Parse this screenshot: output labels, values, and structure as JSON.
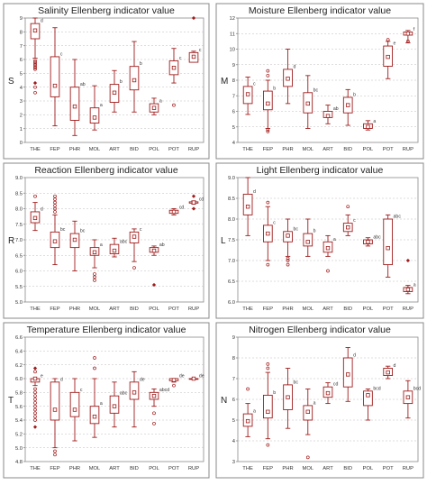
{
  "style": {
    "box_color": "#a01c1c",
    "point_color": "#a01c1c",
    "frame_color": "#8a8a8a",
    "grid_color": "#bdbdbd",
    "axis_text_color": "#333333"
  },
  "chart_data": [
    {
      "type": "box",
      "title": "Salinity Ellenberg indicator value",
      "ylabel": "S",
      "ylim": [
        0,
        9
      ],
      "yticks": [
        "0",
        "1",
        "2",
        "3",
        "4",
        "5",
        "6",
        "7",
        "8",
        "9"
      ],
      "grid": true,
      "categories": [
        "THE",
        "FEP",
        "PHR",
        "MOL",
        "ART",
        "BID",
        "POL",
        "POT",
        "RUP"
      ],
      "series": [
        {
          "values": [
            {
              "min": 6.1,
              "q1": 7.5,
              "median": 8.1,
              "q3": 8.6,
              "max": 9.0,
              "letter": "d",
              "outliers": [
                4.0,
                3.6,
                5.3,
                5.4,
                5.5,
                5.6,
                5.7,
                5.8,
                5.9
              ],
              "extremes": [
                4.3
              ]
            },
            {
              "min": 1.2,
              "q1": 3.3,
              "median": 4.1,
              "q3": 6.2,
              "max": 8.3,
              "letter": "c",
              "outliers": [],
              "extremes": []
            },
            {
              "min": 0.5,
              "q1": 1.6,
              "median": 2.6,
              "q3": 4.0,
              "max": 6.0,
              "letter": "ab",
              "outliers": [],
              "extremes": []
            },
            {
              "min": 0.9,
              "q1": 1.4,
              "median": 1.8,
              "q3": 2.5,
              "max": 4.1,
              "letter": "a",
              "outliers": [],
              "extremes": []
            },
            {
              "min": 2.2,
              "q1": 2.9,
              "median": 3.6,
              "q3": 4.2,
              "max": 5.2,
              "letter": "b",
              "outliers": [],
              "extremes": []
            },
            {
              "min": 2.2,
              "q1": 3.8,
              "median": 4.5,
              "q3": 5.5,
              "max": 7.3,
              "letter": "b",
              "outliers": [],
              "extremes": []
            },
            {
              "min": 2.0,
              "q1": 2.2,
              "median": 2.5,
              "q3": 2.8,
              "max": 3.2,
              "letter": "a",
              "outliers": [],
              "extremes": []
            },
            {
              "min": 4.3,
              "q1": 4.9,
              "median": 5.4,
              "q3": 5.9,
              "max": 6.8,
              "letter": "c",
              "outliers": [
                2.7
              ],
              "extremes": []
            },
            {
              "min": 5.8,
              "q1": 5.8,
              "median": 6.2,
              "q3": 6.5,
              "max": 6.6,
              "letter": "c",
              "outliers": [],
              "extremes": [
                9.0
              ]
            }
          ]
        }
      ]
    },
    {
      "type": "box",
      "title": "Moisture Ellenberg indicator value",
      "ylabel": "M",
      "ylim": [
        4,
        12
      ],
      "yticks": [
        "4",
        "5",
        "6",
        "7",
        "8",
        "9",
        "10",
        "11",
        "12"
      ],
      "grid": true,
      "categories": [
        "THE",
        "FEP",
        "PHR",
        "MOL",
        "ART",
        "BID",
        "POL",
        "POT",
        "RUP"
      ],
      "series": [
        {
          "values": [
            {
              "min": 5.8,
              "q1": 6.5,
              "median": 7.1,
              "q3": 7.6,
              "max": 8.2,
              "letter": "c",
              "outliers": [],
              "extremes": []
            },
            {
              "min": 4.9,
              "q1": 6.1,
              "median": 6.5,
              "q3": 7.3,
              "max": 8.0,
              "letter": "b",
              "outliers": [
                8.3,
                8.6,
                4.7,
                4.8
              ],
              "extremes": []
            },
            {
              "min": 6.5,
              "q1": 7.6,
              "median": 8.1,
              "q3": 8.7,
              "max": 10.0,
              "letter": "d",
              "outliers": [],
              "extremes": []
            },
            {
              "min": 4.9,
              "q1": 5.9,
              "median": 6.5,
              "q3": 7.2,
              "max": 8.3,
              "letter": "bc",
              "outliers": [],
              "extremes": []
            },
            {
              "min": 5.2,
              "q1": 5.6,
              "median": 5.7,
              "q3": 6.0,
              "max": 6.4,
              "letter": "ab",
              "outliers": [],
              "extremes": []
            },
            {
              "min": 5.1,
              "q1": 5.9,
              "median": 6.4,
              "q3": 6.9,
              "max": 7.4,
              "letter": "b",
              "outliers": [],
              "extremes": []
            },
            {
              "min": 4.8,
              "q1": 4.9,
              "median": 5.0,
              "q3": 5.2,
              "max": 5.4,
              "letter": "a",
              "outliers": [],
              "extremes": []
            },
            {
              "min": 8.1,
              "q1": 8.9,
              "median": 9.5,
              "q3": 10.2,
              "max": 10.5,
              "letter": "e",
              "outliers": [
                10.6
              ],
              "extremes": []
            },
            {
              "min": 10.4,
              "q1": 10.9,
              "median": 11.0,
              "q3": 11.1,
              "max": 11.2,
              "letter": "f",
              "outliers": [
                10.5
              ],
              "extremes": []
            }
          ]
        }
      ]
    },
    {
      "type": "box",
      "title": "Reaction Ellenberg indicator value",
      "ylabel": "R",
      "ylim": [
        5,
        9
      ],
      "yticks": [
        "5.0",
        "5.5",
        "6.0",
        "6.5",
        "7.0",
        "7.5",
        "8.0",
        "8.5",
        "9.0"
      ],
      "grid": true,
      "categories": [
        "THE",
        "FEP",
        "PHR",
        "MOL",
        "ART",
        "BID",
        "POL",
        "POT",
        "RUP"
      ],
      "series": [
        {
          "values": [
            {
              "min": 7.3,
              "q1": 7.55,
              "median": 7.7,
              "q3": 7.9,
              "max": 8.2,
              "letter": "d",
              "outliers": [
                8.4
              ],
              "extremes": []
            },
            {
              "min": 6.2,
              "q1": 6.75,
              "median": 6.95,
              "q3": 7.25,
              "max": 7.8,
              "letter": "bc",
              "outliers": [
                7.9,
                8.0,
                8.1,
                8.2,
                8.3,
                8.4
              ],
              "extremes": []
            },
            {
              "min": 6.0,
              "q1": 6.75,
              "median": 7.0,
              "q3": 7.2,
              "max": 7.6,
              "letter": "bc",
              "outliers": [],
              "extremes": []
            },
            {
              "min": 6.1,
              "q1": 6.5,
              "median": 6.6,
              "q3": 6.75,
              "max": 7.0,
              "letter": "a",
              "outliers": [
                5.7,
                5.8,
                5.9
              ],
              "extremes": []
            },
            {
              "min": 6.45,
              "q1": 6.55,
              "median": 6.65,
              "q3": 6.85,
              "max": 7.05,
              "letter": "abc",
              "outliers": [],
              "extremes": []
            },
            {
              "min": 6.3,
              "q1": 6.9,
              "median": 7.1,
              "q3": 7.25,
              "max": 7.35,
              "letter": "c",
              "outliers": [
                6.1
              ],
              "extremes": []
            },
            {
              "min": 6.5,
              "q1": 6.6,
              "median": 6.65,
              "q3": 6.75,
              "max": 6.8,
              "letter": "ab",
              "outliers": [],
              "extremes": [
                5.55
              ]
            },
            {
              "min": 7.8,
              "q1": 7.85,
              "median": 7.9,
              "q3": 7.95,
              "max": 8.0,
              "letter": "cd",
              "outliers": [],
              "extremes": []
            },
            {
              "min": 8.15,
              "q1": 8.18,
              "median": 8.2,
              "q3": 8.22,
              "max": 8.25,
              "letter": "cd",
              "outliers": [],
              "extremes": [
                8.4,
                8.0
              ]
            }
          ]
        }
      ]
    },
    {
      "type": "box",
      "title": "Light Ellenberg indicator value",
      "ylabel": "L",
      "ylim": [
        6,
        9
      ],
      "yticks": [
        "6.0",
        "6.5",
        "7.0",
        "7.5",
        "8.0",
        "8.5",
        "9.0"
      ],
      "grid": true,
      "categories": [
        "THE",
        "FEP",
        "PHR",
        "MOL",
        "ART",
        "BID",
        "POL",
        "POT",
        "RUP"
      ],
      "series": [
        {
          "values": [
            {
              "min": 7.6,
              "q1": 8.1,
              "median": 8.3,
              "q3": 8.6,
              "max": 9.0,
              "letter": "d",
              "outliers": [],
              "extremes": []
            },
            {
              "min": 7.0,
              "q1": 7.45,
              "median": 7.65,
              "q3": 7.85,
              "max": 8.3,
              "letter": "c",
              "outliers": [
                6.9,
                8.4
              ],
              "extremes": []
            },
            {
              "min": 7.1,
              "q1": 7.45,
              "median": 7.6,
              "q3": 7.7,
              "max": 8.0,
              "letter": "bc",
              "outliers": [
                6.9,
                7.0,
                7.05
              ],
              "extremes": []
            },
            {
              "min": 7.1,
              "q1": 7.35,
              "median": 7.45,
              "q3": 7.65,
              "max": 8.0,
              "letter": "b",
              "outliers": [],
              "extremes": []
            },
            {
              "min": 7.1,
              "q1": 7.2,
              "median": 7.3,
              "q3": 7.45,
              "max": 7.6,
              "letter": "a",
              "outliers": [
                6.75
              ],
              "extremes": []
            },
            {
              "min": 7.6,
              "q1": 7.7,
              "median": 7.8,
              "q3": 7.9,
              "max": 8.1,
              "letter": "c",
              "outliers": [
                8.3
              ],
              "extremes": []
            },
            {
              "min": 7.35,
              "q1": 7.4,
              "median": 7.45,
              "q3": 7.5,
              "max": 7.55,
              "letter": "abc",
              "outliers": [],
              "extremes": []
            },
            {
              "min": 6.6,
              "q1": 6.9,
              "median": 7.3,
              "q3": 8.0,
              "max": 8.1,
              "letter": "abc",
              "outliers": [],
              "extremes": []
            },
            {
              "min": 6.2,
              "q1": 6.25,
              "median": 6.3,
              "q3": 6.35,
              "max": 6.4,
              "letter": "a",
              "outliers": [],
              "extremes": [
                7.0
              ]
            }
          ]
        }
      ]
    },
    {
      "type": "box",
      "title": "Temperature  Ellenberg indicator value",
      "ylabel": "T",
      "ylim": [
        4.8,
        6.6
      ],
      "yticks": [
        "4.8",
        "5.0",
        "5.2",
        "5.4",
        "5.6",
        "5.8",
        "6.0",
        "6.2",
        "6.4",
        "6.6"
      ],
      "grid": true,
      "categories": [
        "THE",
        "FEP",
        "PHR",
        "MOL",
        "ART",
        "BID",
        "POL",
        "POT",
        "RUP"
      ],
      "series": [
        {
          "values": [
            {
              "min": 5.9,
              "q1": 5.95,
              "median": 6.0,
              "q3": 6.0,
              "max": 6.0,
              "letter": "e",
              "outliers": [
                5.4,
                5.45,
                5.5,
                5.55,
                5.6,
                5.65,
                5.7,
                5.75,
                5.8,
                5.85,
                6.1
              ],
              "extremes": [
                6.15,
                5.3
              ]
            },
            {
              "min": 5.0,
              "q1": 5.4,
              "median": 5.55,
              "q3": 5.95,
              "max": 6.0,
              "letter": "d",
              "outliers": [
                4.95,
                4.9
              ],
              "extremes": []
            },
            {
              "min": 5.1,
              "q1": 5.45,
              "median": 5.55,
              "q3": 5.8,
              "max": 6.0,
              "letter": "c",
              "outliers": [],
              "extremes": []
            },
            {
              "min": 5.15,
              "q1": 5.35,
              "median": 5.45,
              "q3": 5.6,
              "max": 6.0,
              "letter": "a",
              "outliers": [
                6.15,
                6.3
              ],
              "extremes": []
            },
            {
              "min": 5.3,
              "q1": 5.5,
              "median": 5.6,
              "q3": 5.75,
              "max": 5.95,
              "letter": "abc",
              "outliers": [],
              "extremes": []
            },
            {
              "min": 5.3,
              "q1": 5.7,
              "median": 5.8,
              "q3": 5.95,
              "max": 6.1,
              "letter": "de",
              "outliers": [],
              "extremes": []
            },
            {
              "min": 5.6,
              "q1": 5.7,
              "median": 5.75,
              "q3": 5.8,
              "max": 5.85,
              "letter": "abcd",
              "outliers": [
                5.5,
                5.35
              ],
              "extremes": []
            },
            {
              "min": 5.95,
              "q1": 5.97,
              "median": 5.98,
              "q3": 6.0,
              "max": 6.0,
              "letter": "de",
              "outliers": [
                5.9
              ],
              "extremes": []
            },
            {
              "min": 6.0,
              "q1": 6.0,
              "median": 6.0,
              "q3": 6.0,
              "max": 6.0,
              "letter": "de",
              "outliers": [],
              "extremes": []
            }
          ]
        }
      ]
    },
    {
      "type": "box",
      "title": "Nitrogen Ellenberg indicator value",
      "ylabel": "N",
      "ylim": [
        3,
        9
      ],
      "yticks": [
        "3",
        "4",
        "5",
        "6",
        "7",
        "8",
        "9"
      ],
      "grid": true,
      "categories": [
        "THE",
        "FEP",
        "PHR",
        "MOL",
        "ART",
        "BID",
        "POL",
        "POT",
        "RUP"
      ],
      "series": [
        {
          "values": [
            {
              "min": 4.2,
              "q1": 4.7,
              "median": 4.95,
              "q3": 5.3,
              "max": 5.8,
              "letter": "a",
              "outliers": [
                6.5
              ],
              "extremes": []
            },
            {
              "min": 4.1,
              "q1": 5.1,
              "median": 5.4,
              "q3": 6.2,
              "max": 7.3,
              "letter": "b",
              "outliers": [
                3.8,
                7.5,
                7.7
              ],
              "extremes": []
            },
            {
              "min": 4.6,
              "q1": 5.5,
              "median": 6.1,
              "q3": 6.7,
              "max": 7.5,
              "letter": "bc",
              "outliers": [],
              "extremes": []
            },
            {
              "min": 4.3,
              "q1": 5.0,
              "median": 5.4,
              "q3": 5.7,
              "max": 6.5,
              "letter": "a",
              "outliers": [
                3.2
              ],
              "extremes": []
            },
            {
              "min": 5.8,
              "q1": 6.1,
              "median": 6.3,
              "q3": 6.6,
              "max": 6.8,
              "letter": "cd",
              "outliers": [],
              "extremes": []
            },
            {
              "min": 5.9,
              "q1": 6.6,
              "median": 7.2,
              "q3": 8.0,
              "max": 8.5,
              "letter": "d",
              "outliers": [],
              "extremes": []
            },
            {
              "min": 5.0,
              "q1": 5.7,
              "median": 6.2,
              "q3": 6.4,
              "max": 6.5,
              "letter": "bcd",
              "outliers": [],
              "extremes": []
            },
            {
              "min": 7.0,
              "q1": 7.15,
              "median": 7.3,
              "q3": 7.5,
              "max": 7.6,
              "letter": "d",
              "outliers": [],
              "extremes": []
            },
            {
              "min": 5.1,
              "q1": 5.8,
              "median": 6.1,
              "q3": 6.4,
              "max": 6.9,
              "letter": "bcd",
              "outliers": [],
              "extremes": []
            }
          ]
        }
      ]
    }
  ]
}
